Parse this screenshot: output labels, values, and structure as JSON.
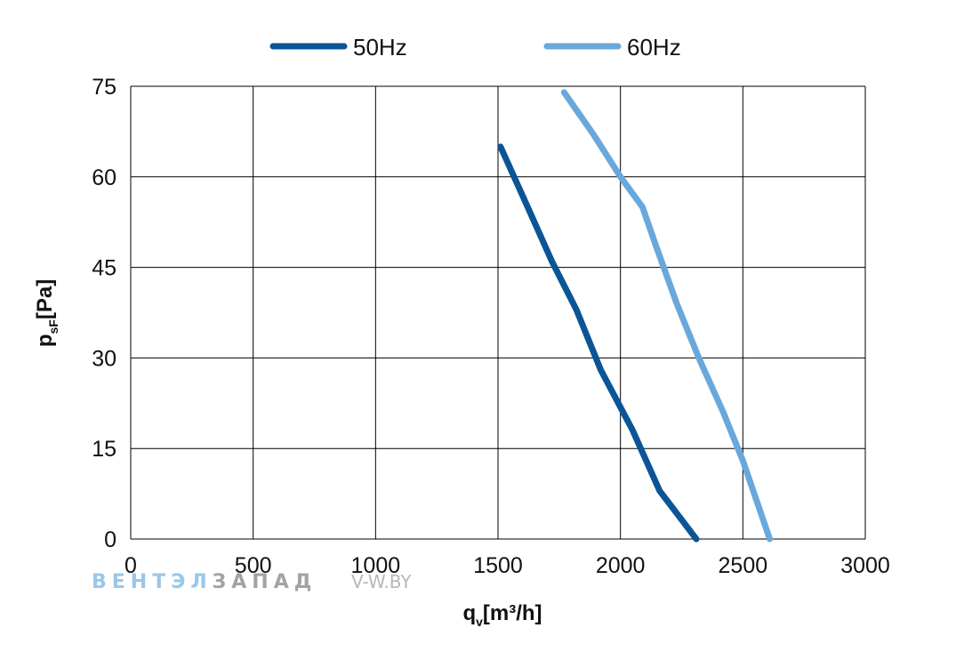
{
  "chart_data": {
    "type": "line",
    "title": "",
    "xlabel_main": "q",
    "xlabel_sub": "v",
    "xlabel_unit": "[m³/h]",
    "ylabel_main": "p",
    "ylabel_sub": "sF",
    "ylabel_unit": "[Pa]",
    "xlim": [
      0,
      3000
    ],
    "ylim": [
      0,
      75
    ],
    "xticks": [
      0,
      500,
      1000,
      1500,
      2000,
      2500,
      3000
    ],
    "yticks": [
      0,
      15,
      30,
      45,
      60,
      75
    ],
    "grid": true,
    "legend_position": "top-center",
    "series": [
      {
        "name": "50Hz",
        "color": "#0b5596",
        "points": [
          [
            1510,
            65
          ],
          [
            1610,
            56
          ],
          [
            1720,
            46
          ],
          [
            1820,
            38
          ],
          [
            1920,
            28
          ],
          [
            2050,
            18
          ],
          [
            2160,
            8
          ],
          [
            2310,
            0
          ]
        ]
      },
      {
        "name": "60Hz",
        "color": "#6aa8dc",
        "points": [
          [
            1770,
            74
          ],
          [
            1890,
            67
          ],
          [
            2000,
            60
          ],
          [
            2090,
            55
          ],
          [
            2150,
            48
          ],
          [
            2230,
            39
          ],
          [
            2320,
            30
          ],
          [
            2420,
            21
          ],
          [
            2500,
            13
          ],
          [
            2610,
            0
          ]
        ]
      }
    ]
  },
  "watermark": {
    "part1": "ВЕНТЭЛ",
    "part2": "ЗАПАД",
    "site": "V-W.BY"
  }
}
